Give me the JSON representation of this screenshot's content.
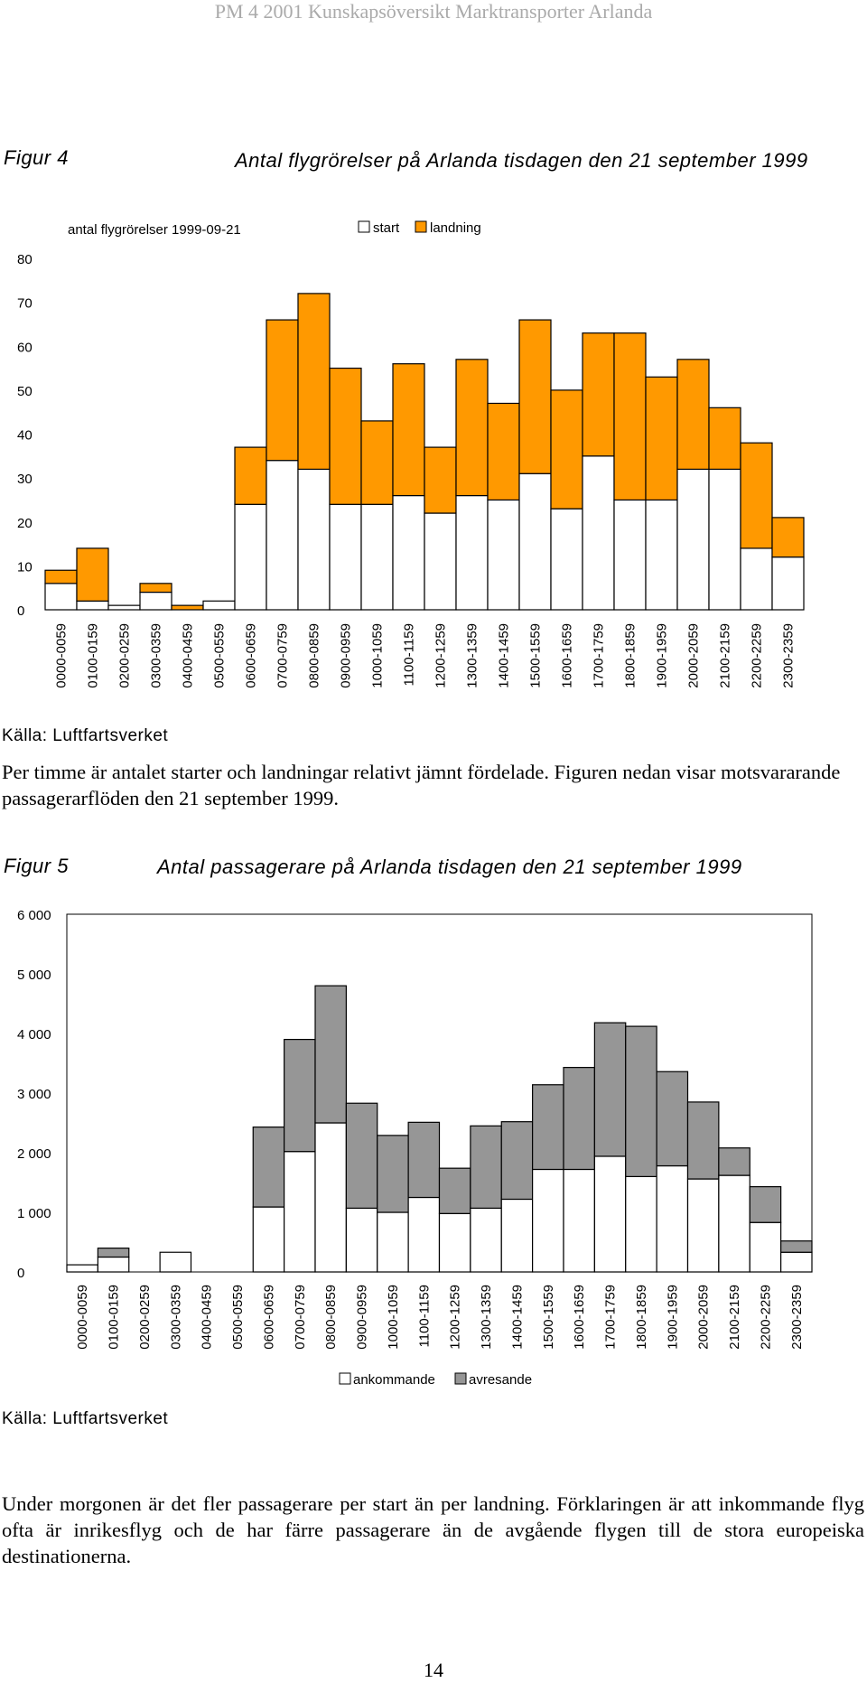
{
  "header": "PM 4 2001 Kunskapsöversikt Marktransporter Arlanda",
  "figure4": {
    "label": "Figur 4",
    "title": "Antal flygrörelser på Arlanda tisdagen den 21 september 1999",
    "source": "Källa: Luftfartsverket"
  },
  "paragraph1": "Per timme är antalet starter och landningar relativt jämnt fördelade. Figuren nedan visar motsvararande passagerarflöden den 21 september 1999.",
  "figure5": {
    "label": "Figur 5",
    "title": "Antal passagerare på Arlanda tisdagen den 21 september 1999",
    "source": "Källa: Luftfartsverket"
  },
  "paragraph2": "Under morgonen är det fler passagerare per start än per landning. Förklaringen är att inkommande flyg ofta är inrikesflyg och de har färre passagerare än de avgående flygen till de stora europeiska destinationerna.",
  "page_number": "14",
  "colors": {
    "landning": "#FF9900",
    "start": "#FFFFFF",
    "avresande": "#969696",
    "ankommande": "#FFFFFF"
  },
  "chart_data": [
    {
      "type": "bar",
      "stacked": true,
      "title": "antal flygrörelser 1999-09-21",
      "categories": [
        "0000-0059",
        "0100-0159",
        "0200-0259",
        "0300-0359",
        "0400-0459",
        "0500-0559",
        "0600-0659",
        "0700-0759",
        "0800-0859",
        "0900-0959",
        "1000-1059",
        "1100-1159",
        "1200-1259",
        "1300-1359",
        "1400-1459",
        "1500-1559",
        "1600-1659",
        "1700-1759",
        "1800-1859",
        "1900-1959",
        "2000-2059",
        "2100-2159",
        "2200-2259",
        "2300-2359"
      ],
      "series": [
        {
          "name": "start",
          "values": [
            6,
            2,
            1,
            4,
            0,
            2,
            24,
            34,
            32,
            24,
            24,
            26,
            22,
            26,
            25,
            31,
            23,
            35,
            25,
            25,
            32,
            32,
            14,
            12
          ]
        },
        {
          "name": "landning",
          "values": [
            3,
            12,
            0,
            2,
            1,
            0,
            13,
            32,
            40,
            31,
            19,
            30,
            15,
            31,
            22,
            35,
            27,
            28,
            38,
            28,
            25,
            14,
            24,
            9
          ]
        }
      ],
      "ylim": [
        0,
        80
      ],
      "yticks": [
        "0",
        "10",
        "20",
        "30",
        "40",
        "50",
        "60",
        "70",
        "80"
      ],
      "legend": "top",
      "grid": false
    },
    {
      "type": "bar",
      "stacked": true,
      "categories": [
        "0000-0059",
        "0100-0159",
        "0200-0259",
        "0300-0359",
        "0400-0459",
        "0500-0559",
        "0600-0659",
        "0700-0759",
        "0800-0859",
        "0900-0959",
        "1000-1059",
        "1100-1159",
        "1200-1259",
        "1300-1359",
        "1400-1459",
        "1500-1559",
        "1600-1659",
        "1700-1759",
        "1800-1859",
        "1900-1959",
        "2000-2059",
        "2100-2159",
        "2200-2259",
        "2300-2359"
      ],
      "series": [
        {
          "name": "ankommande",
          "values": [
            120,
            250,
            0,
            330,
            0,
            0,
            1090,
            2020,
            2500,
            1070,
            1000,
            1250,
            980,
            1070,
            1220,
            1720,
            1720,
            1940,
            1600,
            1780,
            1560,
            1620,
            830,
            330
          ]
        },
        {
          "name": "avresande",
          "values": [
            0,
            150,
            0,
            0,
            0,
            0,
            1340,
            1880,
            2300,
            1760,
            1290,
            1260,
            760,
            1380,
            1300,
            1420,
            1710,
            2240,
            2520,
            1580,
            1290,
            460,
            600,
            190
          ]
        }
      ],
      "ylim": [
        0,
        6000
      ],
      "yticks": [
        "0",
        "1 000",
        "2 000",
        "3 000",
        "4 000",
        "5 000",
        "6 000"
      ],
      "legend": "bottom",
      "grid": false
    }
  ]
}
